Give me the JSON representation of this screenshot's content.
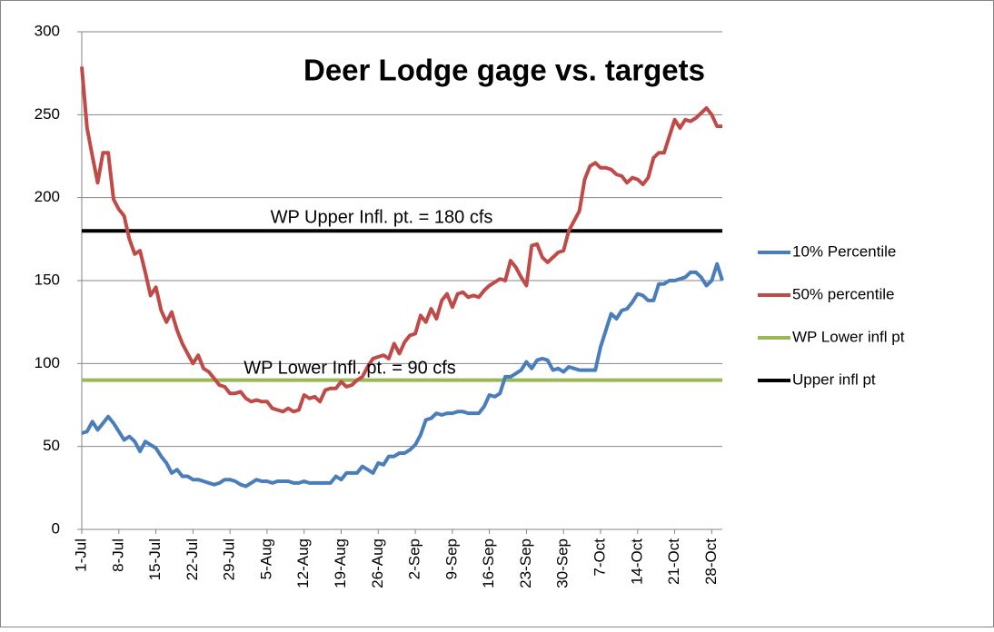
{
  "chart_data": {
    "type": "line",
    "title": "Deer Lodge gage vs. targets",
    "annotations": [
      "WP Upper Infl. pt. = 180 cfs",
      "WP Lower  Infl. pt. = 90 cfs"
    ],
    "categories": [
      "1-Jul",
      null,
      null,
      null,
      null,
      null,
      null,
      "8-Jul",
      null,
      null,
      null,
      null,
      null,
      null,
      "15-Jul",
      null,
      null,
      null,
      null,
      null,
      null,
      "22-Jul",
      null,
      null,
      null,
      null,
      null,
      null,
      "29-Jul",
      null,
      null,
      null,
      null,
      null,
      null,
      "5-Aug",
      null,
      null,
      null,
      null,
      null,
      null,
      "12-Aug",
      null,
      null,
      null,
      null,
      null,
      null,
      "19-Aug",
      null,
      null,
      null,
      null,
      null,
      null,
      "26-Aug",
      null,
      null,
      null,
      null,
      null,
      null,
      "2-Sep",
      null,
      null,
      null,
      null,
      null,
      null,
      "9-Sep",
      null,
      null,
      null,
      null,
      null,
      null,
      "16-Sep",
      null,
      null,
      null,
      null,
      null,
      null,
      "23-Sep",
      null,
      null,
      null,
      null,
      null,
      null,
      "30-Sep",
      null,
      null,
      null,
      null,
      null,
      null,
      "7-Oct",
      null,
      null,
      null,
      null,
      null,
      null,
      "14-Oct",
      null,
      null,
      null,
      null,
      null,
      null,
      "21-Oct",
      null,
      null,
      null,
      null,
      null,
      null,
      "28-Oct",
      null,
      null
    ],
    "ylim": [
      0,
      300
    ],
    "yticks": [
      0,
      50,
      100,
      150,
      200,
      250,
      300
    ],
    "grid": true,
    "legend": "right",
    "series": [
      {
        "name": "10% Percentile",
        "color": "#4a7ebb",
        "values": [
          58,
          59,
          65,
          60,
          64,
          68,
          64,
          59,
          54,
          56,
          53,
          47,
          53,
          51,
          49,
          44,
          40,
          34,
          36,
          32,
          32,
          30,
          30,
          29,
          28,
          27,
          28,
          30,
          30,
          29,
          27,
          26,
          28,
          30,
          29,
          29,
          28,
          29,
          29,
          29,
          28,
          28,
          29,
          28,
          28,
          28,
          28,
          28,
          32,
          30,
          34,
          34,
          34,
          38,
          36,
          34,
          40,
          39,
          44,
          44,
          46,
          46,
          48,
          51,
          57,
          66,
          67,
          70,
          69,
          70,
          70,
          71,
          71,
          70,
          70,
          70,
          74,
          81,
          80,
          82,
          92,
          92,
          94,
          96,
          101,
          97,
          102,
          103,
          102,
          96,
          97,
          95,
          98,
          97,
          96,
          96,
          96,
          96,
          110,
          120,
          130,
          127,
          132,
          133,
          137,
          142,
          141,
          138,
          138,
          148,
          148,
          150,
          150,
          151,
          152,
          155,
          155,
          152,
          147,
          150,
          160,
          150
        ]
      },
      {
        "name": "50% percentile",
        "color": "#be4b48",
        "values": [
          279,
          242,
          225,
          209,
          227,
          227,
          199,
          193,
          189,
          175,
          166,
          168,
          155,
          141,
          146,
          132,
          125,
          131,
          120,
          112,
          106,
          100,
          105,
          97,
          95,
          91,
          87,
          86,
          82,
          82,
          83,
          79,
          77,
          78,
          77,
          77,
          73,
          72,
          71,
          73,
          71,
          72,
          81,
          79,
          80,
          77,
          84,
          85,
          85,
          89,
          86,
          87,
          90,
          92,
          98,
          103,
          104,
          105,
          103,
          112,
          106,
          113,
          117,
          118,
          129,
          125,
          133,
          127,
          138,
          142,
          134,
          142,
          143,
          140,
          141,
          140,
          144,
          147,
          149,
          151,
          150,
          162,
          158,
          152,
          147,
          171,
          172,
          164,
          161,
          164,
          167,
          168,
          180,
          186,
          192,
          211,
          219,
          221,
          218,
          218,
          217,
          214,
          213,
          209,
          212,
          211,
          208,
          212,
          224,
          227,
          227,
          237,
          247,
          242,
          247,
          246,
          248,
          251,
          254,
          250,
          243,
          243
        ]
      },
      {
        "name": "WP Lower infl pt",
        "color": "#98b954",
        "values": [
          90,
          90,
          90,
          90,
          90,
          90,
          90,
          90,
          90,
          90,
          90,
          90,
          90,
          90,
          90,
          90,
          90,
          90,
          90,
          90,
          90,
          90,
          90,
          90,
          90,
          90,
          90,
          90,
          90,
          90,
          90,
          90,
          90,
          90,
          90,
          90,
          90,
          90,
          90,
          90,
          90,
          90,
          90,
          90,
          90,
          90,
          90,
          90,
          90,
          90,
          90,
          90,
          90,
          90,
          90,
          90,
          90,
          90,
          90,
          90,
          90,
          90,
          90,
          90,
          90,
          90,
          90,
          90,
          90,
          90,
          90,
          90,
          90,
          90,
          90,
          90,
          90,
          90,
          90,
          90,
          90,
          90,
          90,
          90,
          90,
          90,
          90,
          90,
          90,
          90,
          90,
          90,
          90,
          90,
          90,
          90,
          90,
          90,
          90,
          90,
          90,
          90,
          90,
          90,
          90,
          90,
          90,
          90,
          90,
          90,
          90,
          90,
          90,
          90,
          90,
          90,
          90,
          90,
          90,
          90,
          90,
          90
        ]
      },
      {
        "name": "Upper infl pt",
        "color": "#000000",
        "values": [
          180,
          180,
          180,
          180,
          180,
          180,
          180,
          180,
          180,
          180,
          180,
          180,
          180,
          180,
          180,
          180,
          180,
          180,
          180,
          180,
          180,
          180,
          180,
          180,
          180,
          180,
          180,
          180,
          180,
          180,
          180,
          180,
          180,
          180,
          180,
          180,
          180,
          180,
          180,
          180,
          180,
          180,
          180,
          180,
          180,
          180,
          180,
          180,
          180,
          180,
          180,
          180,
          180,
          180,
          180,
          180,
          180,
          180,
          180,
          180,
          180,
          180,
          180,
          180,
          180,
          180,
          180,
          180,
          180,
          180,
          180,
          180,
          180,
          180,
          180,
          180,
          180,
          180,
          180,
          180,
          180,
          180,
          180,
          180,
          180,
          180,
          180,
          180,
          180,
          180,
          180,
          180,
          180,
          180,
          180,
          180,
          180,
          180,
          180,
          180,
          180,
          180,
          180,
          180,
          180,
          180,
          180,
          180,
          180,
          180,
          180,
          180,
          180,
          180,
          180,
          180,
          180,
          180,
          180,
          180,
          180,
          180
        ]
      }
    ]
  }
}
